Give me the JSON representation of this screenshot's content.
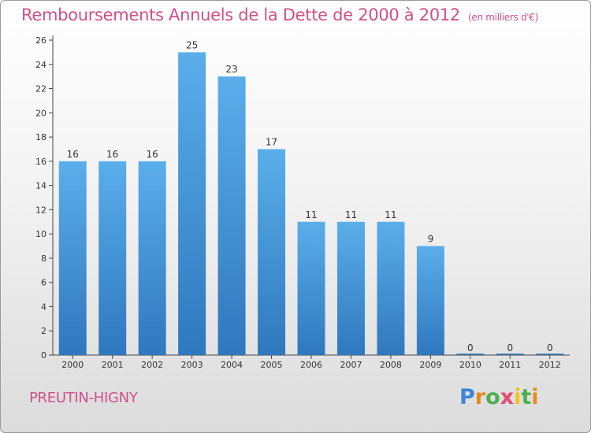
{
  "header": {
    "title": "Remboursements Annuels de la Dette de 2000 à 2012",
    "unit": "(en milliers d'€)"
  },
  "footer": {
    "commune": "PREUTIN-HIGNY",
    "brand": "Proxiti"
  },
  "colors": {
    "title": "#d0508a",
    "bar_top": "#5aaeea",
    "bar_bottom": "#2f78be",
    "axis": "#444444",
    "grid": "#c8c8c8"
  },
  "chart_data": {
    "type": "bar",
    "title": "Remboursements Annuels de la Dette de 2000 à 2012",
    "subtitle": "(en milliers d'€)",
    "xlabel": "",
    "ylabel": "",
    "categories": [
      "2000",
      "2001",
      "2002",
      "2003",
      "2004",
      "2005",
      "2006",
      "2007",
      "2008",
      "2009",
      "2010",
      "2011",
      "2012"
    ],
    "values": [
      16,
      16,
      16,
      25,
      23,
      17,
      11,
      11,
      11,
      9,
      0,
      0,
      0
    ],
    "data_labels": [
      "16",
      "16",
      "16",
      "25",
      "23",
      "17",
      "11",
      "11",
      "11",
      "9",
      "0",
      "0",
      "0"
    ],
    "yticks": [
      "0",
      "2",
      "4",
      "6",
      "8",
      "10",
      "12",
      "14",
      "16",
      "18",
      "20",
      "22",
      "24",
      "26"
    ],
    "ylim": [
      0,
      26
    ],
    "grid": false,
    "legend": "none"
  }
}
